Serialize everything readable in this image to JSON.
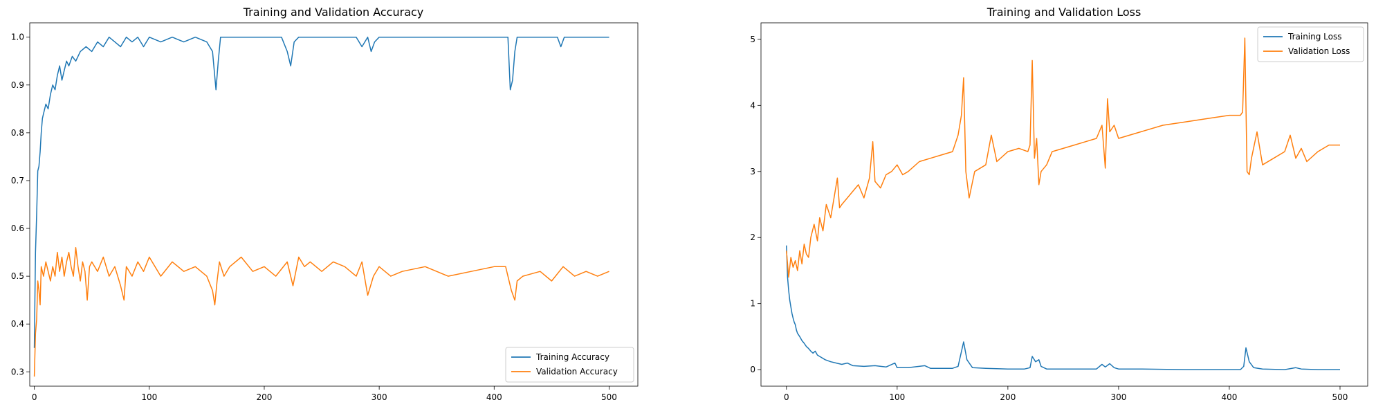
{
  "chart_data": [
    {
      "type": "line",
      "title": "Training and Validation Accuracy",
      "xlabel": "",
      "ylabel": "",
      "xlim": [
        -4,
        525
      ],
      "ylim": [
        0.27,
        1.03
      ],
      "xticks": [
        0,
        100,
        200,
        300,
        400,
        500
      ],
      "yticks": [
        0.3,
        0.4,
        0.5,
        0.6,
        0.7,
        0.8,
        0.9,
        1.0
      ],
      "legend_position": "lower-right",
      "series": [
        {
          "name": "Training Accuracy",
          "color": "#1f77b4",
          "x": [
            0,
            1,
            2,
            3,
            4,
            5,
            6,
            7,
            8,
            10,
            12,
            14,
            16,
            18,
            20,
            22,
            24,
            26,
            28,
            30,
            33,
            36,
            40,
            45,
            50,
            55,
            60,
            65,
            70,
            75,
            80,
            85,
            90,
            95,
            100,
            110,
            120,
            130,
            140,
            150,
            155,
            158,
            160,
            162,
            165,
            170,
            180,
            200,
            215,
            220,
            223,
            226,
            230,
            240,
            260,
            280,
            285,
            290,
            293,
            296,
            300,
            320,
            360,
            400,
            412,
            414,
            416,
            418,
            420,
            440,
            455,
            458,
            461,
            470,
            500
          ],
          "y": [
            0.35,
            0.55,
            0.63,
            0.72,
            0.73,
            0.76,
            0.8,
            0.83,
            0.84,
            0.86,
            0.85,
            0.88,
            0.9,
            0.89,
            0.92,
            0.94,
            0.91,
            0.93,
            0.95,
            0.94,
            0.96,
            0.95,
            0.97,
            0.98,
            0.97,
            0.99,
            0.98,
            1.0,
            0.99,
            0.98,
            1.0,
            0.99,
            1.0,
            0.98,
            1.0,
            0.99,
            1.0,
            0.99,
            1.0,
            0.99,
            0.97,
            0.89,
            0.95,
            1.0,
            1.0,
            1.0,
            1.0,
            1.0,
            1.0,
            0.97,
            0.94,
            0.99,
            1.0,
            1.0,
            1.0,
            1.0,
            0.98,
            1.0,
            0.97,
            0.99,
            1.0,
            1.0,
            1.0,
            1.0,
            1.0,
            0.89,
            0.91,
            0.97,
            1.0,
            1.0,
            1.0,
            0.98,
            1.0,
            1.0,
            1.0
          ]
        },
        {
          "name": "Validation Accuracy",
          "color": "#ff7f0e",
          "x": [
            0,
            1,
            2,
            3,
            4,
            5,
            6,
            8,
            10,
            12,
            14,
            16,
            18,
            20,
            22,
            24,
            26,
            28,
            30,
            32,
            34,
            36,
            38,
            40,
            42,
            44,
            46,
            48,
            50,
            55,
            60,
            65,
            70,
            75,
            78,
            80,
            85,
            90,
            95,
            100,
            110,
            120,
            130,
            140,
            150,
            155,
            157,
            159,
            161,
            165,
            170,
            180,
            190,
            200,
            210,
            220,
            225,
            230,
            235,
            240,
            250,
            260,
            270,
            280,
            285,
            290,
            295,
            300,
            310,
            320,
            340,
            360,
            380,
            400,
            410,
            415,
            418,
            420,
            425,
            440,
            450,
            460,
            470,
            480,
            490,
            500
          ],
          "y": [
            0.29,
            0.38,
            0.41,
            0.49,
            0.47,
            0.44,
            0.52,
            0.5,
            0.53,
            0.51,
            0.49,
            0.52,
            0.5,
            0.55,
            0.51,
            0.54,
            0.5,
            0.53,
            0.55,
            0.52,
            0.5,
            0.56,
            0.52,
            0.49,
            0.53,
            0.51,
            0.45,
            0.52,
            0.53,
            0.51,
            0.54,
            0.5,
            0.52,
            0.48,
            0.45,
            0.52,
            0.5,
            0.53,
            0.51,
            0.54,
            0.5,
            0.53,
            0.51,
            0.52,
            0.5,
            0.47,
            0.44,
            0.49,
            0.53,
            0.5,
            0.52,
            0.54,
            0.51,
            0.52,
            0.5,
            0.53,
            0.48,
            0.54,
            0.52,
            0.53,
            0.51,
            0.53,
            0.52,
            0.5,
            0.53,
            0.46,
            0.5,
            0.52,
            0.5,
            0.51,
            0.52,
            0.5,
            0.51,
            0.52,
            0.52,
            0.47,
            0.45,
            0.49,
            0.5,
            0.51,
            0.49,
            0.52,
            0.5,
            0.51,
            0.5,
            0.51
          ]
        }
      ]
    },
    {
      "type": "line",
      "title": "Training and Validation Loss",
      "xlabel": "",
      "ylabel": "",
      "xlim": [
        -23,
        525
      ],
      "ylim": [
        -0.25,
        5.25
      ],
      "xticks": [
        0,
        100,
        200,
        300,
        400,
        500
      ],
      "yticks": [
        0,
        1,
        2,
        3,
        4,
        5
      ],
      "legend_position": "top-right",
      "series": [
        {
          "name": "Training Loss",
          "color": "#1f77b4",
          "x": [
            0,
            1,
            2,
            3,
            4,
            5,
            6,
            7,
            8,
            9,
            10,
            12,
            14,
            16,
            18,
            20,
            22,
            24,
            26,
            28,
            30,
            35,
            40,
            45,
            50,
            55,
            60,
            70,
            80,
            90,
            98,
            100,
            110,
            125,
            130,
            150,
            155,
            160,
            163,
            168,
            180,
            200,
            215,
            220,
            222,
            225,
            228,
            230,
            235,
            250,
            280,
            285,
            288,
            292,
            296,
            300,
            320,
            360,
            400,
            410,
            413,
            415,
            418,
            422,
            430,
            450,
            460,
            465,
            480,
            500
          ],
          "y": [
            1.88,
            1.4,
            1.2,
            1.05,
            0.95,
            0.85,
            0.78,
            0.72,
            0.68,
            0.6,
            0.55,
            0.5,
            0.44,
            0.4,
            0.35,
            0.32,
            0.28,
            0.25,
            0.28,
            0.22,
            0.2,
            0.15,
            0.12,
            0.1,
            0.08,
            0.1,
            0.06,
            0.05,
            0.06,
            0.04,
            0.1,
            0.03,
            0.03,
            0.06,
            0.02,
            0.02,
            0.05,
            0.42,
            0.15,
            0.03,
            0.02,
            0.01,
            0.01,
            0.03,
            0.2,
            0.12,
            0.15,
            0.05,
            0.01,
            0.01,
            0.01,
            0.08,
            0.04,
            0.09,
            0.03,
            0.01,
            0.01,
            0.0,
            0.0,
            0.0,
            0.05,
            0.33,
            0.12,
            0.03,
            0.01,
            0.0,
            0.03,
            0.01,
            0.0,
            0.0
          ]
        },
        {
          "name": "Validation Loss",
          "color": "#ff7f0e",
          "x": [
            0,
            2,
            4,
            6,
            8,
            10,
            12,
            14,
            16,
            18,
            20,
            22,
            25,
            28,
            30,
            33,
            36,
            40,
            43,
            46,
            48,
            50,
            55,
            60,
            65,
            70,
            75,
            78,
            80,
            85,
            90,
            95,
            100,
            105,
            110,
            120,
            130,
            140,
            150,
            155,
            158,
            160,
            162,
            165,
            170,
            180,
            185,
            190,
            200,
            210,
            218,
            220,
            222,
            224,
            226,
            228,
            230,
            235,
            240,
            250,
            260,
            270,
            280,
            285,
            288,
            290,
            292,
            296,
            300,
            320,
            340,
            360,
            380,
            400,
            410,
            412,
            414,
            416,
            418,
            420,
            425,
            430,
            440,
            450,
            455,
            460,
            465,
            470,
            480,
            490,
            500
          ],
          "y": [
            1.8,
            1.4,
            1.7,
            1.55,
            1.65,
            1.5,
            1.8,
            1.6,
            1.9,
            1.75,
            1.7,
            2.0,
            2.2,
            1.95,
            2.3,
            2.1,
            2.5,
            2.3,
            2.6,
            2.9,
            2.45,
            2.5,
            2.6,
            2.7,
            2.8,
            2.6,
            2.9,
            3.45,
            2.85,
            2.75,
            2.95,
            3.0,
            3.1,
            2.95,
            3.0,
            3.15,
            3.2,
            3.25,
            3.3,
            3.55,
            3.85,
            4.42,
            3.0,
            2.6,
            3.0,
            3.1,
            3.55,
            3.15,
            3.3,
            3.35,
            3.3,
            3.4,
            4.68,
            3.2,
            3.5,
            2.8,
            3.0,
            3.1,
            3.3,
            3.35,
            3.4,
            3.45,
            3.5,
            3.7,
            3.05,
            4.1,
            3.6,
            3.7,
            3.5,
            3.6,
            3.7,
            3.75,
            3.8,
            3.85,
            3.85,
            3.9,
            5.02,
            3.0,
            2.95,
            3.2,
            3.6,
            3.1,
            3.2,
            3.3,
            3.55,
            3.2,
            3.35,
            3.15,
            3.3,
            3.4,
            3.4
          ]
        }
      ]
    }
  ]
}
